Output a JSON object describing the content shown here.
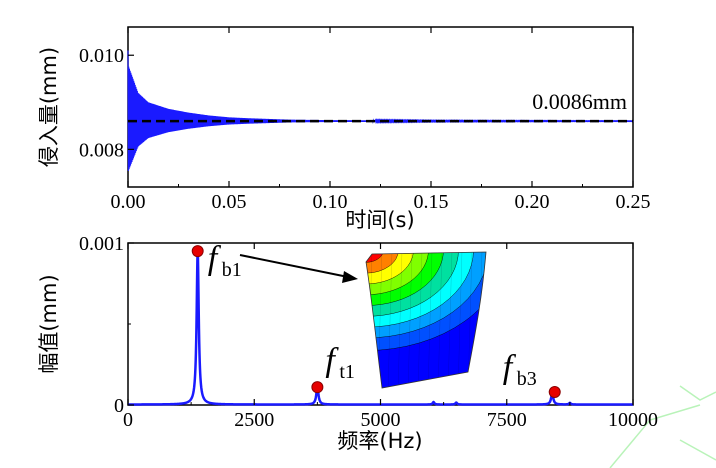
{
  "chart_data": [
    {
      "type": "line",
      "xlabel": "时间(s)",
      "ylabel": "侵入量(mm)",
      "xlim": [
        0,
        0.25
      ],
      "ylim": [
        0.0072,
        0.0106
      ],
      "xticks": [
        "0.00",
        "0.05",
        "0.10",
        "0.15",
        "0.20",
        "0.25"
      ],
      "yticks": [
        "0.008",
        "0.010"
      ],
      "grid": false,
      "series": [
        {
          "color": "#1a1aff",
          "style": "decaying-oscillation",
          "mean": 0.0086,
          "initial_peak": 0.0101,
          "envelope": {
            "t": [
              0.0,
              0.005,
              0.01,
              0.02,
              0.03,
              0.04,
              0.05,
              0.06,
              0.08,
              0.1,
              0.15,
              0.25
            ],
            "half_amplitude": [
              0.0012,
              0.0006,
              0.0004,
              0.00026,
              0.00018,
              0.00012,
              8e-05,
              6e-05,
              3e-05,
              2e-05,
              1e-05,
              5e-06
            ]
          }
        }
      ],
      "reference_line": {
        "y": 0.0086,
        "style": "dashed",
        "color": "#000000",
        "label": "0.0086mm"
      }
    },
    {
      "type": "line",
      "xlabel": "频率(Hz)",
      "ylabel": "幅值(mm)",
      "xlim": [
        0,
        10000
      ],
      "ylim": [
        0,
        0.001
      ],
      "xticks": [
        "0",
        "2500",
        "5000",
        "7500",
        "10000"
      ],
      "yticks": [
        "0",
        "0.001"
      ],
      "grid": false,
      "series": [
        {
          "color": "#1a1aff",
          "baseline": 3e-06,
          "peaks": [
            {
              "f": 1380,
              "amp": 0.00095,
              "width": 25
            },
            {
              "f": 3750,
              "amp": 0.00011,
              "width": 25
            },
            {
              "f": 6050,
              "amp": 1.5e-05,
              "width": 20
            },
            {
              "f": 6500,
              "amp": 1.2e-05,
              "width": 20
            },
            {
              "f": 8400,
              "amp": 7e-05,
              "width": 25
            },
            {
              "f": 8750,
              "amp": 1e-05,
              "width": 20
            }
          ]
        }
      ],
      "markers": [
        {
          "x": 1380,
          "y": 0.00095,
          "color": "#e60000",
          "label_main": "f",
          "label_sub": "b1"
        },
        {
          "x": 3750,
          "y": 0.00011,
          "color": "#e60000",
          "label_main": "f",
          "label_sub": "t1"
        },
        {
          "x": 8450,
          "y": 8e-05,
          "color": "#e60000",
          "label_main": "f",
          "label_sub": "b3"
        }
      ],
      "inset": {
        "description_icon": "mode-shape-contour-icon",
        "colors": [
          "#ff0000",
          "#ff8000",
          "#ffff00",
          "#80ff00",
          "#00ff00",
          "#00e0a0",
          "#00ffff",
          "#00a0ff",
          "#0050ff",
          "#0000ff"
        ]
      }
    }
  ]
}
